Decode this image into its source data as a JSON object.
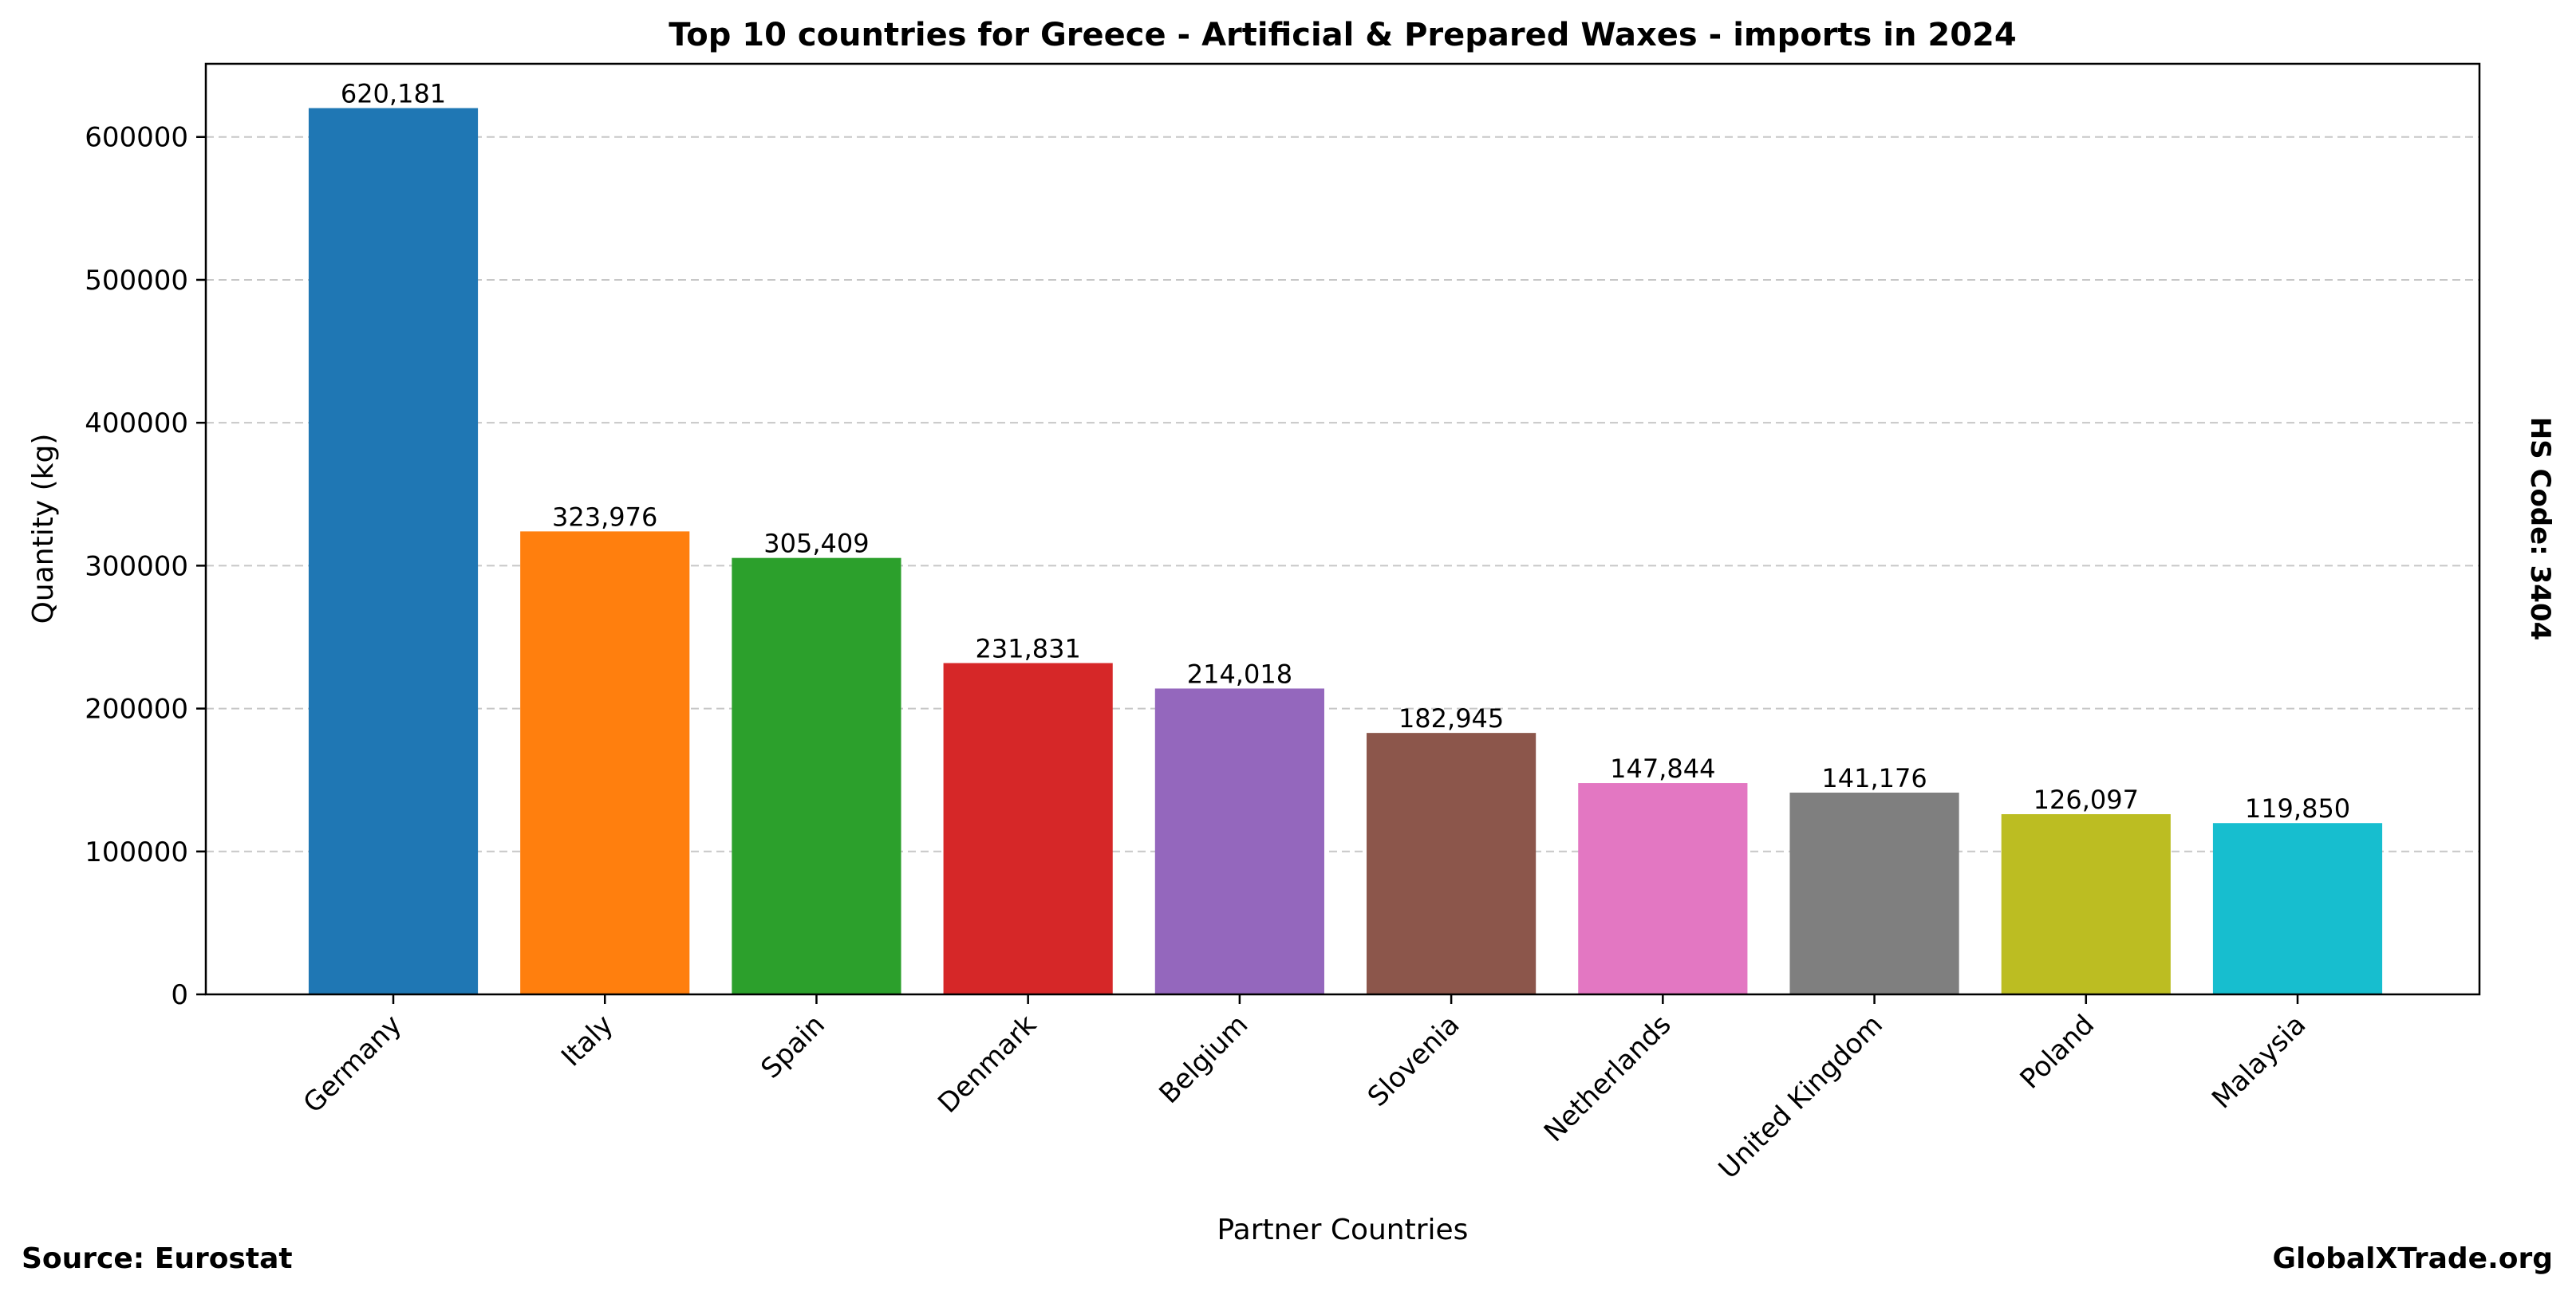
{
  "chart_data": {
    "type": "bar",
    "title": "Top 10 countries for Greece - Artificial & Prepared Waxes - imports in 2024",
    "xlabel": "Partner Countries",
    "ylabel": "Quantity (kg)",
    "categories": [
      "Germany",
      "Italy",
      "Spain",
      "Denmark",
      "Belgium",
      "Slovenia",
      "Netherlands",
      "United Kingdom",
      "Poland",
      "Malaysia"
    ],
    "values": [
      620181,
      323976,
      305409,
      231831,
      214018,
      182945,
      147844,
      141176,
      126097,
      119850
    ],
    "value_labels": [
      "620,181",
      "323,976",
      "305,409",
      "231,831",
      "214,018",
      "182,945",
      "147,844",
      "141,176",
      "126,097",
      "119,850"
    ],
    "colors": [
      "#1f77b4",
      "#ff7f0e",
      "#2ca02c",
      "#d62728",
      "#9467bd",
      "#8c564b",
      "#e377c2",
      "#7f7f7f",
      "#bcbd22",
      "#17becf"
    ],
    "ylim": [
      0,
      651190
    ],
    "yticks": [
      0,
      100000,
      200000,
      300000,
      400000,
      500000,
      600000
    ],
    "ytick_labels": [
      "0",
      "100000",
      "200000",
      "300000",
      "400000",
      "500000",
      "600000"
    ],
    "grid": "y, dashed",
    "legend": "none"
  },
  "footer": {
    "source": "Source: Eurostat",
    "brand": "GlobalXTrade.org"
  },
  "side_note": "HS Code: 3404"
}
